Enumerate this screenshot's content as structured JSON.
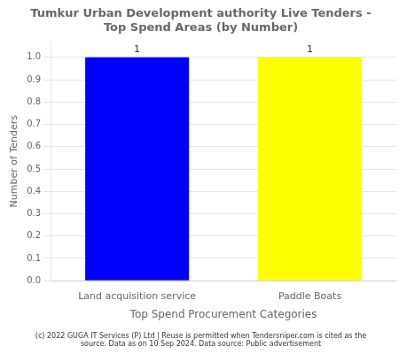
{
  "chart_data": {
    "type": "bar",
    "title": "Tumkur Urban Development authority Live Tenders -\nTop Spend Areas (by Number)",
    "categories": [
      "Land acquisition service",
      "Paddle Boats"
    ],
    "values": [
      1,
      1
    ],
    "colors": [
      "#0000FF",
      "#FFFF00"
    ],
    "ylabel": "Number of Tenders",
    "xlabel": "Top Spend Procurement Categories",
    "ylim": [
      0,
      1.07
    ],
    "yticks": [
      {
        "value": 0.0,
        "label": "0.0"
      },
      0.1,
      0.2,
      0.3,
      0.4,
      0.5,
      0.6,
      0.7,
      0.8,
      0.9,
      {
        "value": 1.0,
        "label": "1.0"
      }
    ],
    "grid": true,
    "data_labels": true,
    "footnote": "(c) 2022 GUGA IT Services (P) Ltd | Reuse is permitted when Tendersniper.com is cited as the\nsource. Data as on 10 Sep 2024. Data source: Public advertisement"
  }
}
